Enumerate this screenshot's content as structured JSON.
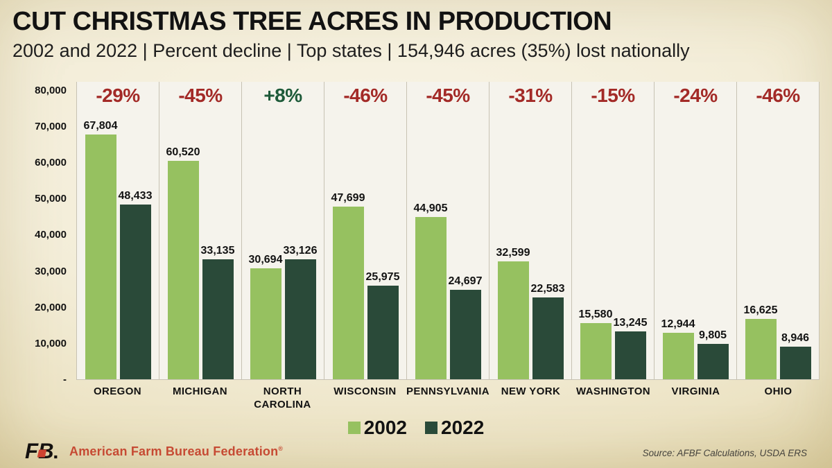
{
  "header": {
    "title": "CUT CHRISTMAS TREE ACRES IN PRODUCTION",
    "subtitle": "2002 and 2022 | Percent decline | Top states | 154,946 acres (35%) lost nationally"
  },
  "chart_data": {
    "type": "bar",
    "title": "CUT CHRISTMAS TREE ACRES IN PRODUCTION",
    "subtitle": "2002 and 2022 | Percent decline | Top states | 154,946 acres (35%) lost nationally",
    "categories": [
      "OREGON",
      "MICHIGAN",
      "NORTH CAROLINA",
      "WISCONSIN",
      "PENNSYLVANIA",
      "NEW YORK",
      "WASHINGTON",
      "VIRGINIA",
      "OHIO"
    ],
    "series": [
      {
        "name": "2002",
        "color": "#96c160",
        "values": [
          67804,
          60520,
          30694,
          47699,
          44905,
          32599,
          15580,
          12944,
          16625
        ],
        "labels": [
          "67,804",
          "60,520",
          "30,694",
          "47,699",
          "44,905",
          "32,599",
          "15,580",
          "12,944",
          "16,625"
        ]
      },
      {
        "name": "2022",
        "color": "#2a4a39",
        "values": [
          48433,
          33135,
          33126,
          25975,
          24697,
          22583,
          13245,
          9805,
          8946
        ],
        "labels": [
          "48,433",
          "33,135",
          "33,126",
          "25,975",
          "24,697",
          "22,583",
          "13,245",
          "9,805",
          "8,946"
        ]
      }
    ],
    "percent_change": [
      "-29%",
      "-45%",
      "+8%",
      "-46%",
      "-45%",
      "-31%",
      "-15%",
      "-24%",
      "-46%"
    ],
    "ylim": [
      0,
      80000
    ],
    "yticks": [
      {
        "value": 80000,
        "label": "80,000"
      },
      {
        "value": 70000,
        "label": "70,000"
      },
      {
        "value": 60000,
        "label": "60,000"
      },
      {
        "value": 50000,
        "label": "50,000"
      },
      {
        "value": 40000,
        "label": "40,000"
      },
      {
        "value": 30000,
        "label": "30,000"
      },
      {
        "value": 20000,
        "label": "20,000"
      },
      {
        "value": 10000,
        "label": "10,000"
      },
      {
        "value": 0,
        "label": "-"
      }
    ],
    "legend": [
      "2002",
      "2022"
    ],
    "legend_position": "bottom",
    "grid": false,
    "colors": {
      "negative": "#a32a27",
      "positive": "#1d5a39"
    }
  },
  "footer": {
    "logo_icon": "afbf-logo",
    "brand": "American Farm Bureau Federation",
    "registered_mark": "®",
    "source": "Source: AFBF Calculations, USDA ERS"
  }
}
